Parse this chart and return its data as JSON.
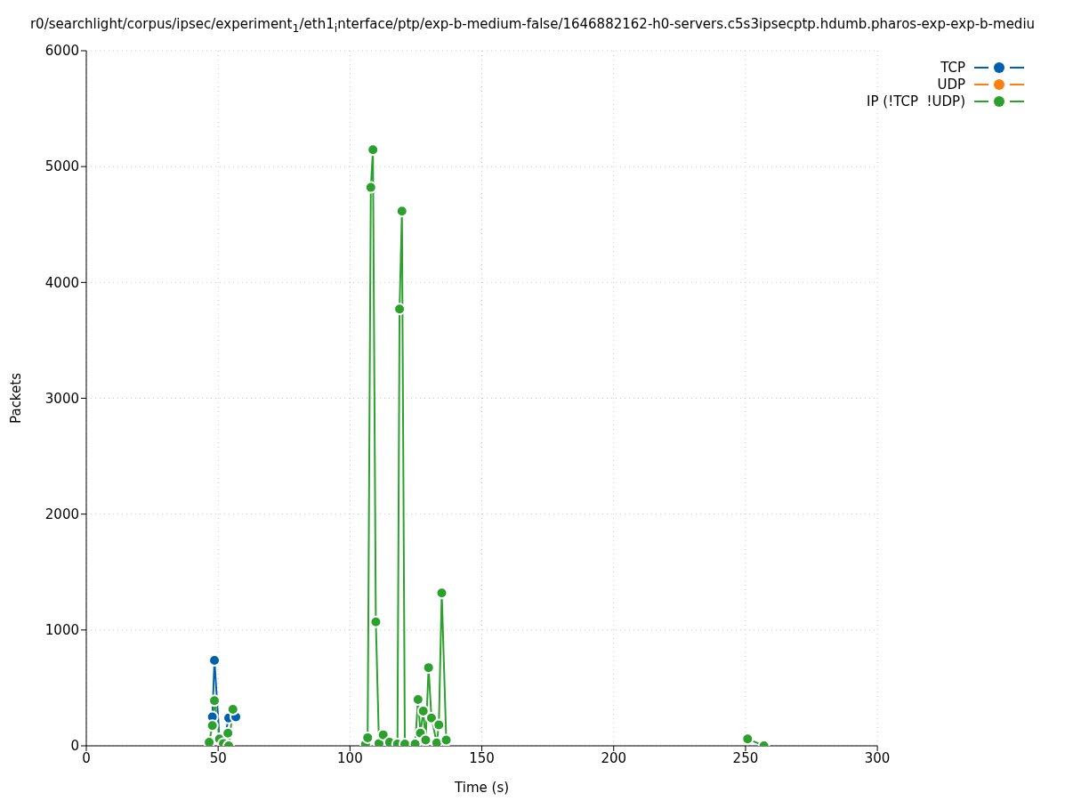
{
  "chart_data": {
    "type": "line",
    "title": "r0/searchlight/corpus/ipsec/experiment$_{1}$/eth1$_{i}$nterface/ptp/exp-b-medium-false/1646882162-h0-servers.c5s3ipsecptp.hdumb.pharos-exp-exp-b-mediu",
    "xlabel": "Time (s)",
    "ylabel": "Packets",
    "series": [
      {
        "name": "TCP",
        "color": "#0060ad",
        "x": [
          47.8,
          48.6,
          50.5,
          52,
          54,
          56.7
        ],
        "values": [
          250,
          737,
          60,
          20,
          240,
          250
        ]
      },
      {
        "name": "UDP",
        "color": "#ff7f0e"
      },
      {
        "name": "IP (!TCP  !UDP)",
        "color": "#2ca02c",
        "x": [
          46.6,
          47.8,
          48.6,
          50.5,
          52,
          53.7,
          54,
          55.6,
          80,
          105.9,
          106.7,
          107.9,
          108.7,
          109.8,
          111,
          112.6,
          115,
          118,
          118.8,
          119.7,
          120.8,
          124.7,
          125.8,
          126.7,
          127.8,
          128.7,
          129.8,
          130.9,
          132.9,
          133.7,
          134.8,
          136.5,
          200,
          250.8,
          257
        ],
        "values": [
          30,
          175,
          390,
          60,
          20,
          110,
          0,
          315,
          null,
          15,
          70,
          4820,
          5145,
          1070,
          20,
          95,
          30,
          15,
          3770,
          4615,
          15,
          15,
          400,
          110,
          300,
          50,
          675,
          240,
          25,
          180,
          1320,
          50,
          null,
          60,
          0
        ]
      }
    ],
    "xlim": [
      0,
      300
    ],
    "xticks": [
      0,
      50,
      100,
      150,
      200,
      250,
      300
    ],
    "ylim": [
      0,
      6000
    ],
    "yticks": [
      0,
      1000,
      2000,
      3000,
      4000,
      5000,
      6000
    ],
    "grid": true,
    "legend": "top right",
    "marker": "circle",
    "line_style": "solid"
  }
}
